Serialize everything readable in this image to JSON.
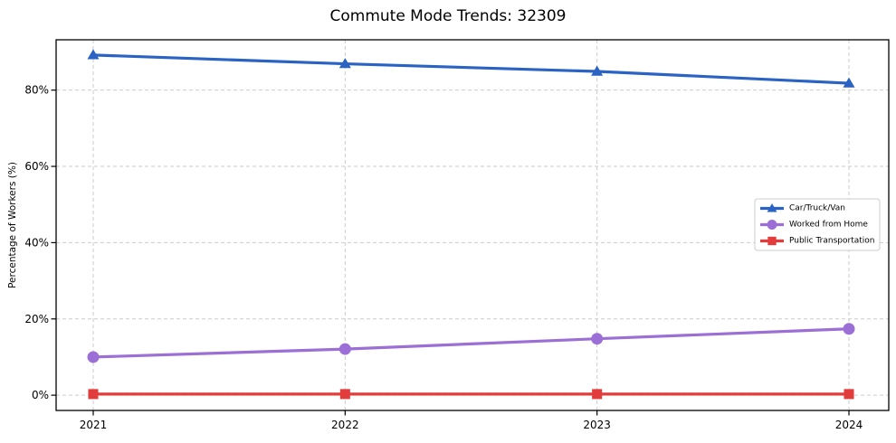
{
  "chart_data": {
    "type": "line",
    "title": "Commute Mode Trends: 32309",
    "xlabel": "",
    "ylabel": "Percentage of Workers (%)",
    "categories": [
      "2021",
      "2022",
      "2023",
      "2024"
    ],
    "series": [
      {
        "name": "Car/Truck/Van",
        "marker": "triangle",
        "color": "#2a63c4",
        "values": [
          89.2,
          86.9,
          84.9,
          81.8
        ]
      },
      {
        "name": "Worked from Home",
        "marker": "circle",
        "color": "#9c6fd6",
        "values": [
          10.0,
          12.1,
          14.8,
          17.4
        ]
      },
      {
        "name": "Public Transportation",
        "marker": "square",
        "color": "#e23c3c",
        "values": [
          0.3,
          0.3,
          0.3,
          0.3
        ]
      }
    ],
    "yticks": [
      0,
      20,
      40,
      60,
      80
    ],
    "ytick_labels": [
      "0%",
      "20%",
      "40%",
      "60%",
      "80%"
    ],
    "ylim": [
      -4,
      93.2
    ],
    "grid": "dashed-both-axes",
    "legend_position": "center-right"
  },
  "colors": {
    "grid": "#cbcbcb",
    "frame": "#000000",
    "text": "#000000",
    "legend_border": "#cccccc",
    "legend_background": "#ffffff",
    "background": "#ffffff"
  }
}
